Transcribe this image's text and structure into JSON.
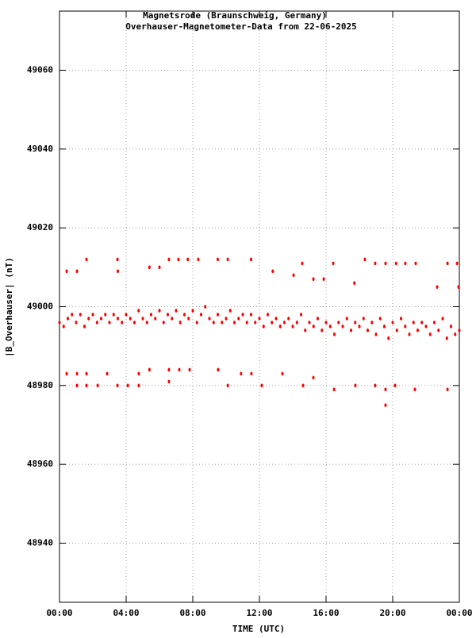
{
  "chart_data": {
    "type": "scatter",
    "title": "Magnetsrode (Braunschweig, Germany)",
    "subtitle": "Overhauser-Magnetometer-Data from 22-06-2025",
    "x_label": "TIME (UTC)",
    "y_label": "|B_Overhauser| (nT)",
    "color": "#ff0000",
    "grid": true,
    "xlim": [
      0,
      24
    ],
    "xticks": [
      {
        "value": 0,
        "label": "00:00"
      },
      {
        "value": 4,
        "label": "04:00"
      },
      {
        "value": 8,
        "label": "08:00"
      },
      {
        "value": 12,
        "label": "12:00"
      },
      {
        "value": 16,
        "label": "16:00"
      },
      {
        "value": 20,
        "label": "20:00"
      },
      {
        "value": 24,
        "label": "00:00"
      }
    ],
    "ylim": [
      48925,
      49075
    ],
    "yticks": [
      48940,
      48960,
      48980,
      49000,
      49020,
      49040,
      49060
    ],
    "x": [
      0,
      0.25,
      0.5,
      0.75,
      1,
      1.25,
      1.5,
      1.75,
      2,
      2.25,
      2.5,
      2.75,
      3,
      3.25,
      3.5,
      3.75,
      4,
      4.25,
      4.5,
      4.75,
      5,
      5.25,
      5.5,
      5.75,
      6,
      6.25,
      6.5,
      6.75,
      7,
      7.25,
      7.5,
      7.75,
      8,
      8.25,
      8.5,
      8.75,
      9,
      9.25,
      9.5,
      9.75,
      10,
      10.25,
      10.5,
      10.75,
      11,
      11.25,
      11.5,
      11.75,
      12,
      12.25,
      12.5,
      12.75,
      13,
      13.25,
      13.5,
      13.75,
      14,
      14.25,
      14.5,
      14.75,
      15,
      15.25,
      15.5,
      15.75,
      16,
      16.25,
      16.5,
      16.75,
      17,
      17.25,
      17.5,
      17.75,
      18,
      18.25,
      18.5,
      18.75,
      19,
      19.25,
      19.5,
      19.75,
      20,
      20.25,
      20.5,
      20.75,
      21,
      21.25,
      21.5,
      21.75,
      22,
      22.25,
      22.5,
      22.75,
      23,
      23.25,
      23.5,
      23.75,
      24,
      0.43,
      1.05,
      1.62,
      3.48,
      3.5,
      5.4,
      6,
      6.57,
      7.14,
      7.7,
      8.33,
      9.5,
      10.1,
      11.5,
      12.8,
      14.05,
      14.57,
      15.24,
      15.86,
      16.43,
      17.7,
      18.33,
      18.95,
      19.57,
      20.2,
      20.76,
      21.38,
      22.67,
      23.29,
      23.86,
      23.95,
      0.43,
      1.05,
      1.05,
      1.62,
      1.62,
      2.29,
      2.86,
      3.48,
      4.1,
      4.76,
      4.76,
      5.4,
      6.57,
      6.57,
      7.19,
      7.81,
      9.52,
      10.1,
      10.9,
      11.52,
      12.14,
      13.38,
      14.62,
      15.24,
      16.48,
      17.76,
      18.95,
      19.57,
      19.57,
      20.14,
      21.33,
      23.29
    ],
    "values": [
      48996,
      48995,
      48997,
      48998,
      48996,
      48998,
      48995,
      48997,
      48998,
      48996,
      48997,
      48998,
      48996,
      48998,
      48997,
      48996,
      48998,
      48997,
      48996,
      48999,
      48997,
      48996,
      48998,
      48997,
      48999,
      48996,
      48998,
      48997,
      48999,
      48996,
      48998,
      48997,
      48999,
      48996,
      48998,
      49000,
      48997,
      48996,
      48998,
      48996,
      48997,
      48999,
      48996,
      48997,
      48998,
      48996,
      48998,
      48996,
      48997,
      48995,
      48998,
      48996,
      48997,
      48995,
      48996,
      48997,
      48995,
      48996,
      48998,
      48994,
      48996,
      48995,
      48997,
      48994,
      48996,
      48995,
      48993,
      48996,
      48995,
      48997,
      48994,
      48996,
      48995,
      48997,
      48994,
      48996,
      48993,
      48997,
      48995,
      48992,
      48996,
      48994,
      48997,
      48995,
      48993,
      48996,
      48994,
      48996,
      48995,
      48993,
      48996,
      48994,
      48997,
      48992,
      48995,
      48993,
      48994,
      49009,
      49009,
      49012,
      49012,
      49009,
      49010,
      49010,
      49012,
      49012,
      49012,
      49012,
      49012,
      49012,
      49012,
      49009,
      49008,
      49011,
      49007,
      49007,
      49011,
      49006,
      49012,
      49011,
      49011,
      49011,
      49011,
      49011,
      49005,
      49011,
      49011,
      49005,
      48983,
      48983,
      48980,
      48983,
      48980,
      48980,
      48983,
      48980,
      48980,
      48983,
      48980,
      48984,
      48984,
      48981,
      48984,
      48984,
      48984,
      48980,
      48983,
      48983,
      48980,
      48983,
      48980,
      48982,
      48979,
      48980,
      48980,
      48979,
      48975,
      48980,
      48979,
      48979
    ]
  }
}
